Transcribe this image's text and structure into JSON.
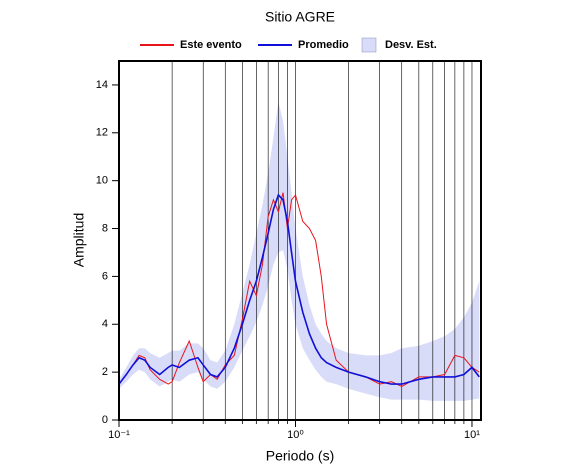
{
  "chart_data": {
    "type": "line",
    "title": "Sitio AGRE",
    "x_label": "Periodo (s)",
    "y_label": "Amplitud",
    "log_x": true,
    "xlim": [
      0.1,
      11.25
    ],
    "ylim": [
      0,
      15
    ],
    "xticks": [
      {
        "value": 0.1,
        "label": "10⁻¹"
      },
      {
        "value": 1,
        "label": "10⁰"
      },
      {
        "value": 10,
        "label": "10¹"
      }
    ],
    "x_minor_ticks": [
      0.2,
      0.3,
      0.4,
      0.5,
      0.6,
      0.7,
      0.8,
      0.9,
      2,
      3,
      4,
      5,
      6,
      7,
      8,
      9
    ],
    "yticks": [
      0,
      2,
      4,
      6,
      8,
      10,
      12,
      14
    ],
    "grid": true,
    "x": [
      0.1,
      0.11,
      0.12,
      0.13,
      0.14,
      0.15,
      0.17,
      0.19,
      0.2,
      0.22,
      0.25,
      0.28,
      0.3,
      0.33,
      0.36,
      0.4,
      0.45,
      0.5,
      0.55,
      0.6,
      0.65,
      0.7,
      0.75,
      0.8,
      0.85,
      0.9,
      0.95,
      1.0,
      1.1,
      1.2,
      1.3,
      1.4,
      1.5,
      1.7,
      2,
      2.5,
      3,
      3.5,
      4,
      5,
      6,
      7,
      8,
      9,
      10,
      11
    ],
    "series": [
      {
        "name": "Este evento",
        "color": "#e8141c",
        "values": [
          1.5,
          1.9,
          2.3,
          2.7,
          2.6,
          2.1,
          1.7,
          1.5,
          1.6,
          2.4,
          3.3,
          2.2,
          1.6,
          1.9,
          1.7,
          2.3,
          2.7,
          4.2,
          5.8,
          5.2,
          6.5,
          8.5,
          9.2,
          8.7,
          9.5,
          8.0,
          9.2,
          9.4,
          8.3,
          8.0,
          7.5,
          6.0,
          4.0,
          2.5,
          2.0,
          1.8,
          1.5,
          1.6,
          1.4,
          1.8,
          1.8,
          1.9,
          2.7,
          2.6,
          2.2,
          2.0
        ]
      },
      {
        "name": "Promedio",
        "color": "#1010d8",
        "values": [
          1.5,
          1.9,
          2.3,
          2.6,
          2.5,
          2.2,
          1.9,
          2.2,
          2.3,
          2.2,
          2.5,
          2.6,
          2.3,
          1.9,
          1.8,
          2.2,
          3.0,
          4.0,
          5.0,
          5.8,
          6.8,
          7.8,
          8.8,
          9.4,
          9.2,
          8.3,
          7.0,
          5.8,
          4.5,
          3.6,
          3.0,
          2.6,
          2.4,
          2.2,
          2.0,
          1.8,
          1.6,
          1.5,
          1.5,
          1.7,
          1.8,
          1.8,
          1.8,
          1.9,
          2.2,
          1.8
        ]
      }
    ],
    "band": {
      "name": "Desv. Est.",
      "color": "#d8dcf8",
      "upper": [
        1.7,
        2.2,
        2.7,
        3.0,
        3.0,
        2.8,
        2.6,
        2.8,
        2.9,
        2.9,
        3.2,
        3.2,
        3.0,
        2.5,
        2.4,
        2.9,
        4.0,
        5.3,
        6.5,
        7.8,
        9.0,
        10.3,
        11.8,
        13.3,
        12.5,
        11,
        9.5,
        8.0,
        6.0,
        4.8,
        4.0,
        3.6,
        3.3,
        3.0,
        2.8,
        2.7,
        2.7,
        2.8,
        3.0,
        3.1,
        3.3,
        3.5,
        3.8,
        4.3,
        4.9,
        5.8
      ],
      "lower": [
        1.3,
        1.6,
        1.9,
        2.1,
        2.0,
        1.7,
        1.4,
        1.6,
        1.7,
        1.6,
        1.9,
        2.0,
        1.7,
        1.4,
        1.3,
        1.6,
        2.2,
        2.9,
        3.5,
        4.1,
        4.8,
        5.6,
        6.5,
        7.0,
        7.1,
        6.3,
        5.0,
        4.0,
        3.0,
        2.5,
        2.1,
        1.8,
        1.6,
        1.5,
        1.3,
        1.1,
        0.95,
        0.85,
        0.85,
        0.85,
        0.8,
        0.8,
        0.8,
        0.8,
        0.85,
        0.9
      ]
    }
  }
}
